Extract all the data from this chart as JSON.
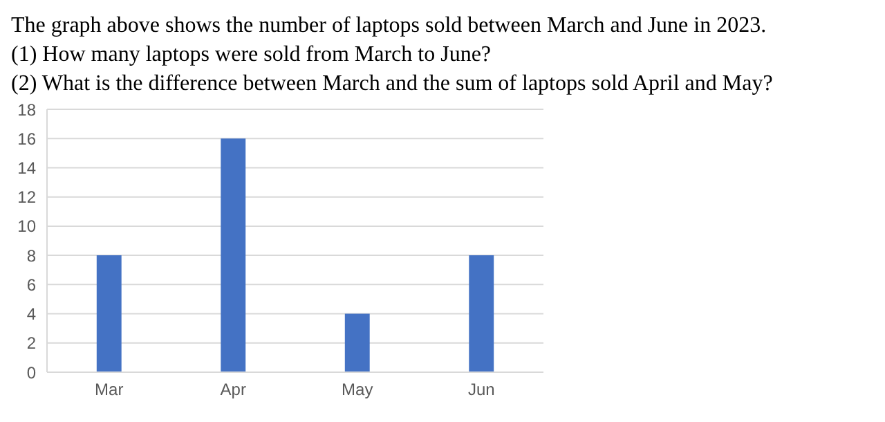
{
  "chart_data": {
    "type": "bar",
    "title": "The graph above shows the number of laptops sold between March and June in 2023.",
    "annotations": [
      "(1) How many laptops were sold from March to June?",
      "(2) What is the difference between March and the sum of laptops sold April and May?"
    ],
    "categories": [
      "Mar",
      "Apr",
      "May",
      "Jun"
    ],
    "values": [
      8,
      16,
      4,
      8
    ],
    "color": "#4472c4",
    "ylim": [
      0,
      18
    ],
    "yticks": [
      0,
      2,
      4,
      6,
      8,
      10,
      12,
      14,
      16,
      18
    ],
    "grid": "y"
  }
}
